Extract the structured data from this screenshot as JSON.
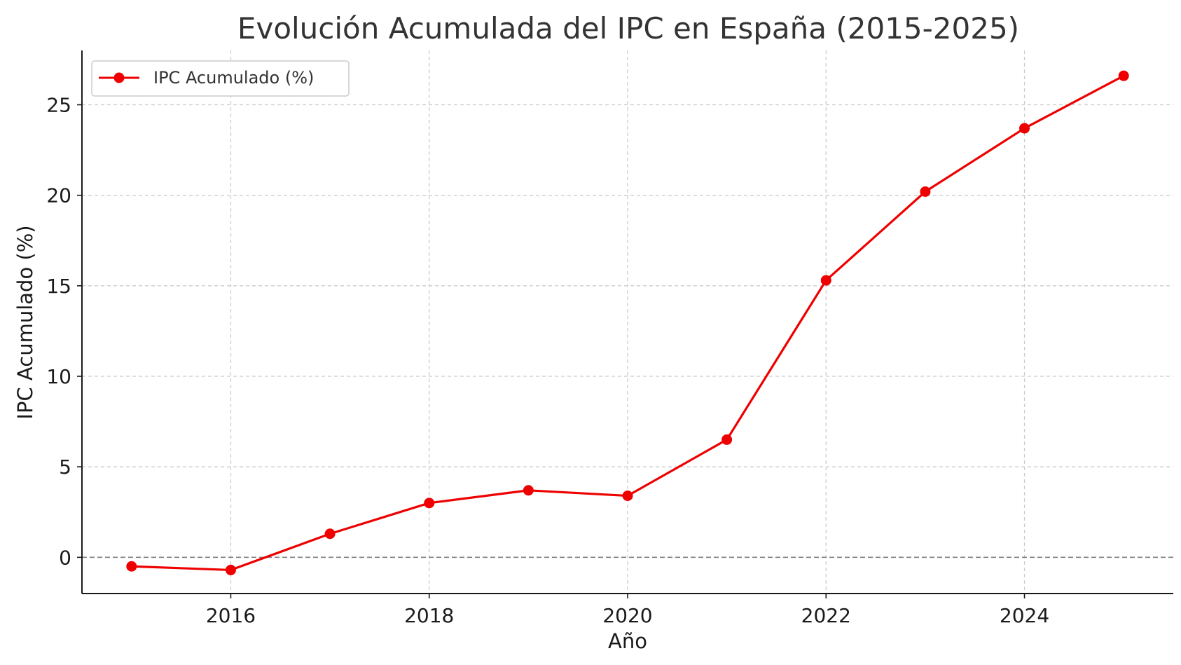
{
  "chart_data": {
    "type": "line",
    "title": "Evolución Acumulada del IPC en España (2015-2025)",
    "xlabel": "Año",
    "ylabel": "IPC Acumulado (%)",
    "x": [
      2015,
      2016,
      2017,
      2018,
      2019,
      2020,
      2021,
      2022,
      2023,
      2024,
      2025
    ],
    "series": [
      {
        "name": "IPC Acumulado (%)",
        "values": [
          -0.5,
          -0.7,
          1.3,
          3.0,
          3.7,
          3.4,
          6.5,
          15.3,
          20.2,
          23.7,
          26.6
        ],
        "color": "#ee0000",
        "marker": "circle"
      }
    ],
    "xlim": [
      2014.5,
      2025.5
    ],
    "ylim": [
      -2,
      28
    ],
    "xticks": [
      "2016",
      "2018",
      "2020",
      "2022",
      "2024"
    ],
    "yticks": [
      "0",
      "5",
      "10",
      "15",
      "20",
      "25"
    ],
    "grid": true,
    "zero_reference_line": true,
    "legend_position": "top-left",
    "colors": {
      "series": "#ee0000",
      "grid": "#cccccc",
      "zero_line": "#808080",
      "text": "#333333"
    }
  }
}
